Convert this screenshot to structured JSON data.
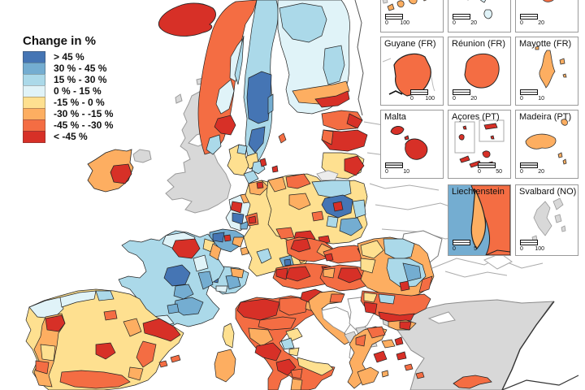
{
  "legend": {
    "title": "Change in %",
    "classes": [
      {
        "label": "> 45 %",
        "color": "#4575b4"
      },
      {
        "label": "30 % - 45 %",
        "color": "#74add1"
      },
      {
        "label": "15 % - 30 %",
        "color": "#abd9e9"
      },
      {
        "label": "0 % - 15 %",
        "color": "#e0f3f8"
      },
      {
        "label": "-15 % - 0 %",
        "color": "#fee090"
      },
      {
        "label": "-30 % - -15 %",
        "color": "#fdae61"
      },
      {
        "label": "-45 % - -30 %",
        "color": "#f46d43"
      },
      {
        "label": "< -45 %",
        "color": "#d73027"
      }
    ]
  },
  "palette": {
    "b1": "#4575b4",
    "b2": "#74add1",
    "b3": "#abd9e9",
    "b4": "#e0f3f8",
    "y1": "#fee090",
    "o1": "#fdae61",
    "o2": "#f46d43",
    "r1": "#d73027",
    "nodata": "#d8d8d8",
    "neighbor": "#ffffff",
    "sea": "#ffffff"
  },
  "insets": [
    {
      "label": "",
      "scale": [
        "0",
        "100"
      ]
    },
    {
      "label": "",
      "scale": [
        "0",
        "20"
      ]
    },
    {
      "label": "",
      "scale": [
        "0",
        "20"
      ]
    },
    {
      "label": "Guyane (FR)",
      "scale": [
        "0",
        "100"
      ]
    },
    {
      "label": "Réunion (FR)",
      "scale": [
        "0",
        "20"
      ]
    },
    {
      "label": "Mayotte (FR)",
      "scale": [
        "0",
        "10"
      ]
    },
    {
      "label": "Malta",
      "scale": [
        "0",
        "10"
      ]
    },
    {
      "label": "Açores (PT)",
      "scale": [
        "0",
        "50"
      ]
    },
    {
      "label": "Madeira (PT)",
      "scale": [
        "0",
        "20"
      ]
    },
    {
      "label": "Liechtenstein",
      "scale": [
        "0",
        "5"
      ]
    },
    {
      "label": "Svalbard (NO)",
      "scale": [
        "0",
        "100"
      ]
    }
  ]
}
